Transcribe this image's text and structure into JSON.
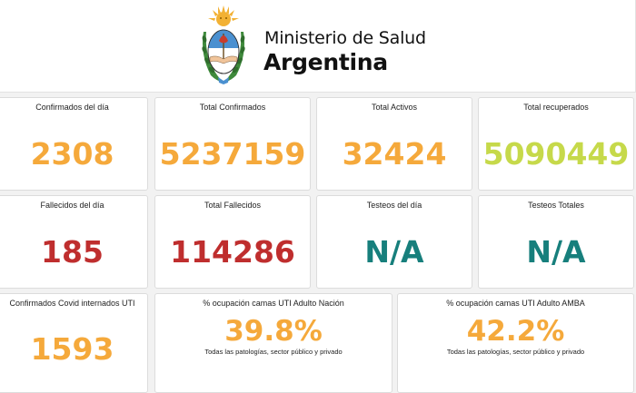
{
  "header": {
    "ministry": "Ministerio de Salud",
    "country": "Argentina",
    "logo": "argentina-coat-of-arms"
  },
  "colors": {
    "orange": "#f5a93b",
    "lime": "#c6d94a",
    "red": "#bf2e2e",
    "teal": "#177f7c"
  },
  "stats": {
    "confirmados_dia": {
      "label": "Confirmados del día",
      "value": "2308"
    },
    "total_confirmados": {
      "label": "Total Confirmados",
      "value": "5237159"
    },
    "total_activos": {
      "label": "Total Activos",
      "value": "32424"
    },
    "total_recuperados": {
      "label": "Total recuperados",
      "value": "5090449"
    },
    "fallecidos_dia": {
      "label": "Fallecidos del día",
      "value": "185"
    },
    "total_fallecidos": {
      "label": "Total Fallecidos",
      "value": "114286"
    },
    "testeos_dia": {
      "label": "Testeos del día",
      "value": "N/A"
    },
    "testeos_totales": {
      "label": "Testeos Totales",
      "value": "N/A"
    },
    "internados_uti": {
      "label": "Confirmados Covid internados UTI",
      "value": "1593"
    },
    "ocupacion_nacion": {
      "label": "% ocupación camas UTI Adulto Nación",
      "value": "39.8%",
      "note": "Todas las patologías, sector público y privado"
    },
    "ocupacion_amba": {
      "label": "% ocupación camas UTI Adulto AMBA",
      "value": "42.2%",
      "note": "Todas las patologías, sector público y privado"
    }
  }
}
